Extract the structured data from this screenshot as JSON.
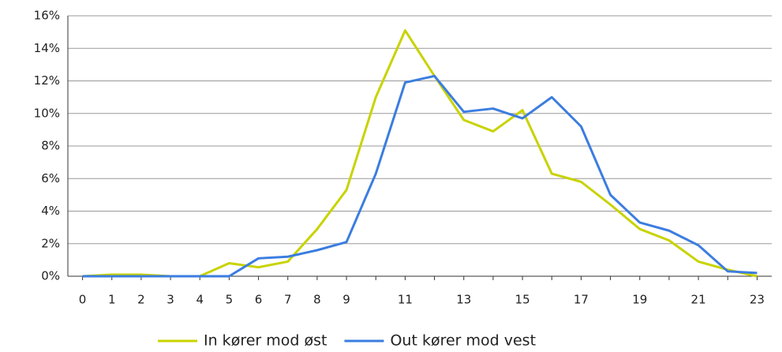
{
  "chart_data": {
    "type": "line",
    "categories": [
      "0",
      "1",
      "2",
      "3",
      "4",
      "5",
      "6",
      "7",
      "8",
      "9",
      null,
      "11",
      null,
      "13",
      null,
      "15",
      null,
      "17",
      null,
      "19",
      null,
      "21",
      null,
      "23"
    ],
    "series": [
      {
        "name": "In kører mod øst",
        "color": "#c8d300",
        "values": [
          0,
          0.1,
          0.1,
          0,
          0,
          0.8,
          0.55,
          0.9,
          2.9,
          5.3,
          11.0,
          15.1,
          12.3,
          9.6,
          8.9,
          10.2,
          6.3,
          5.8,
          4.4,
          2.9,
          2.2,
          0.9,
          0.4,
          0
        ]
      },
      {
        "name": "Out kører mod vest",
        "color": "#3b7de0",
        "values": [
          0,
          0,
          0,
          0,
          0,
          0,
          1.1,
          1.2,
          1.6,
          2.1,
          6.3,
          11.9,
          12.3,
          10.1,
          10.3,
          9.7,
          11.0,
          9.2,
          5.0,
          3.3,
          2.8,
          1.9,
          0.3,
          0.2
        ]
      }
    ],
    "ylim": [
      0,
      16
    ],
    "yticks": [
      {
        "value": 0,
        "label": "0%"
      },
      {
        "value": 2,
        "label": "2%"
      },
      {
        "value": 4,
        "label": "4%"
      },
      {
        "value": 6,
        "label": "6%"
      },
      {
        "value": 8,
        "label": "8%"
      },
      {
        "value": 10,
        "label": "10%"
      },
      {
        "value": 12,
        "label": "12%"
      },
      {
        "value": 14,
        "label": "14%"
      },
      {
        "value": 16,
        "label": "16%"
      }
    ],
    "grid": true,
    "legend": "bottom"
  }
}
